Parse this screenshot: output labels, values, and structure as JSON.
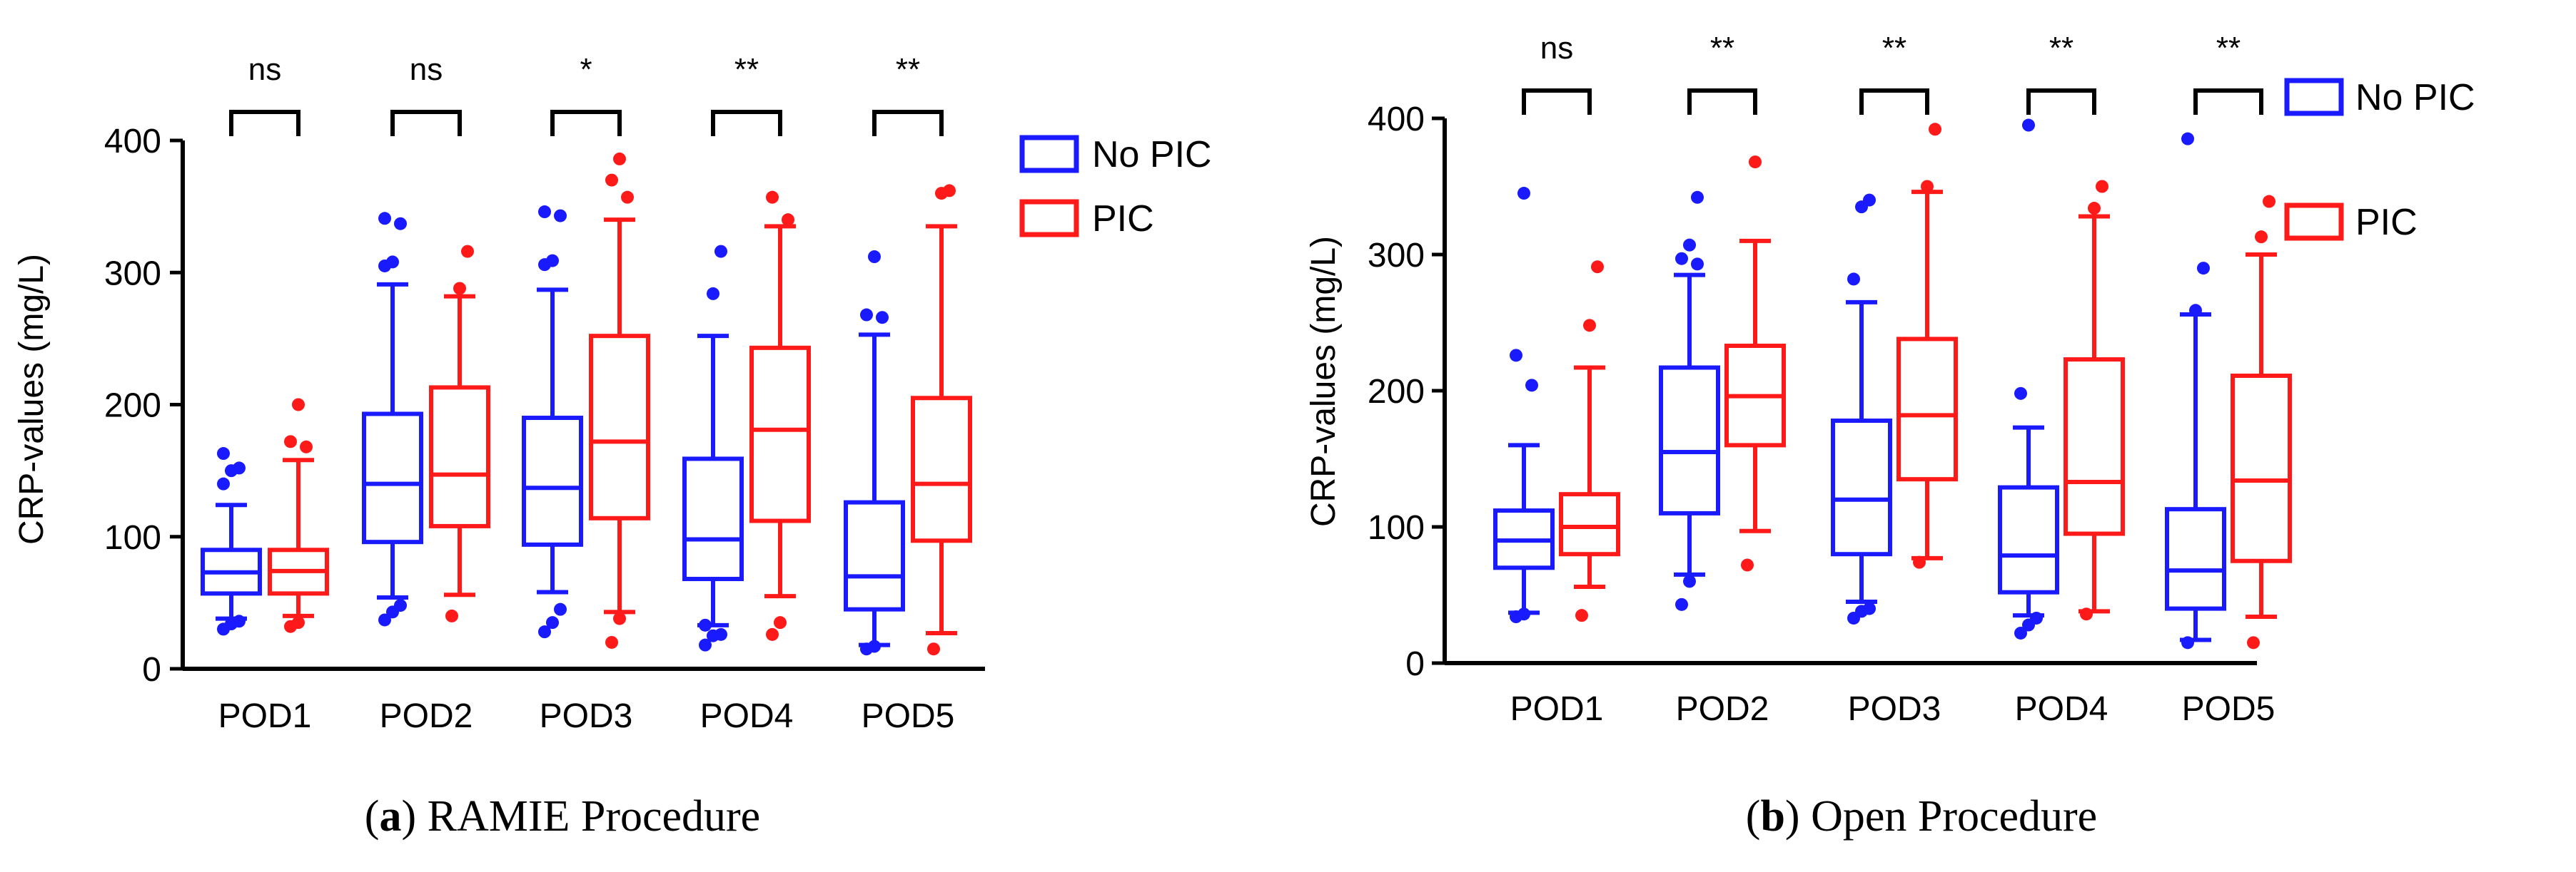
{
  "chart_data": [
    {
      "type": "box",
      "panel_letter": "a",
      "caption": "RAMIE Procedure",
      "ylabel": "CRP-values (mg/L)",
      "ylim": [
        0,
        400
      ],
      "yticks": [
        0,
        100,
        200,
        300,
        400
      ],
      "categories": [
        "POD1",
        "POD2",
        "POD3",
        "POD4",
        "POD5"
      ],
      "significance": [
        "ns",
        "ns",
        "*",
        "**",
        "**"
      ],
      "legend": [
        {
          "name": "No PIC",
          "color": "#1a1aff"
        },
        {
          "name": "PIC",
          "color": "#ff1a1a"
        }
      ],
      "series": [
        {
          "name": "No PIC",
          "color": "#1a1aff",
          "boxes": [
            {
              "whisker_low": 38,
              "q1": 57,
              "median": 73,
              "q3": 90,
              "whisker_high": 124,
              "outliers": [
                30,
                34,
                36,
                140,
                150,
                152,
                163
              ]
            },
            {
              "whisker_low": 54,
              "q1": 96,
              "median": 140,
              "q3": 193,
              "whisker_high": 291,
              "outliers": [
                37,
                43,
                48,
                305,
                308,
                337,
                341
              ]
            },
            {
              "whisker_low": 58,
              "q1": 94,
              "median": 137,
              "q3": 190,
              "whisker_high": 287,
              "outliers": [
                28,
                35,
                45,
                306,
                309,
                343,
                346
              ]
            },
            {
              "whisker_low": 33,
              "q1": 68,
              "median": 98,
              "q3": 159,
              "whisker_high": 252,
              "outliers": [
                18,
                25,
                26,
                33,
                284,
                316
              ]
            },
            {
              "whisker_low": 18,
              "q1": 45,
              "median": 70,
              "q3": 126,
              "whisker_high": 253,
              "outliers": [
                15,
                17,
                266,
                268,
                312
              ]
            }
          ]
        },
        {
          "name": "PIC",
          "color": "#ff1a1a",
          "boxes": [
            {
              "whisker_low": 40,
              "q1": 57,
              "median": 74,
              "q3": 90,
              "whisker_high": 158,
              "outliers": [
                32,
                35,
                168,
                172,
                200
              ]
            },
            {
              "whisker_low": 56,
              "q1": 108,
              "median": 147,
              "q3": 213,
              "whisker_high": 282,
              "outliers": [
                40,
                288,
                316
              ]
            },
            {
              "whisker_low": 43,
              "q1": 114,
              "median": 172,
              "q3": 252,
              "whisker_high": 340,
              "outliers": [
                20,
                38,
                357,
                370,
                386
              ]
            },
            {
              "whisker_low": 55,
              "q1": 112,
              "median": 181,
              "q3": 243,
              "whisker_high": 335,
              "outliers": [
                26,
                35,
                340,
                357
              ]
            },
            {
              "whisker_low": 27,
              "q1": 97,
              "median": 140,
              "q3": 205,
              "whisker_high": 335,
              "outliers": [
                15,
                360,
                362
              ]
            }
          ]
        }
      ]
    },
    {
      "type": "box",
      "panel_letter": "b",
      "caption": "Open Procedure",
      "ylabel": "CRP-values (mg/L)",
      "ylim": [
        0,
        400
      ],
      "yticks": [
        0,
        100,
        200,
        300,
        400
      ],
      "categories": [
        "POD1",
        "POD2",
        "POD3",
        "POD4",
        "POD5"
      ],
      "significance": [
        "ns",
        "**",
        "**",
        "**",
        "**"
      ],
      "legend": [
        {
          "name": "No PIC",
          "color": "#1a1aff"
        },
        {
          "name": "PIC",
          "color": "#ff1a1a"
        }
      ],
      "series": [
        {
          "name": "No PIC",
          "color": "#1a1aff",
          "boxes": [
            {
              "whisker_low": 37,
              "q1": 70,
              "median": 90,
              "q3": 112,
              "whisker_high": 160,
              "outliers": [
                34,
                36,
                204,
                226,
                345
              ]
            },
            {
              "whisker_low": 65,
              "q1": 110,
              "median": 155,
              "q3": 217,
              "whisker_high": 285,
              "outliers": [
                43,
                60,
                293,
                297,
                307,
                342
              ]
            },
            {
              "whisker_low": 45,
              "q1": 80,
              "median": 120,
              "q3": 178,
              "whisker_high": 265,
              "outliers": [
                33,
                38,
                40,
                282,
                335,
                340
              ]
            },
            {
              "whisker_low": 35,
              "q1": 52,
              "median": 79,
              "q3": 129,
              "whisker_high": 173,
              "outliers": [
                22,
                28,
                33,
                198,
                395
              ]
            },
            {
              "whisker_low": 17,
              "q1": 40,
              "median": 68,
              "q3": 113,
              "whisker_high": 256,
              "outliers": [
                15,
                259,
                290,
                385
              ]
            }
          ]
        },
        {
          "name": "PIC",
          "color": "#ff1a1a",
          "boxes": [
            {
              "whisker_low": 56,
              "q1": 80,
              "median": 100,
              "q3": 124,
              "whisker_high": 217,
              "outliers": [
                35,
                248,
                291
              ]
            },
            {
              "whisker_low": 97,
              "q1": 160,
              "median": 196,
              "q3": 233,
              "whisker_high": 310,
              "outliers": [
                72,
                368
              ]
            },
            {
              "whisker_low": 77,
              "q1": 135,
              "median": 182,
              "q3": 238,
              "whisker_high": 346,
              "outliers": [
                74,
                350,
                392
              ]
            },
            {
              "whisker_low": 38,
              "q1": 95,
              "median": 133,
              "q3": 223,
              "whisker_high": 328,
              "outliers": [
                36,
                334,
                350
              ]
            },
            {
              "whisker_low": 34,
              "q1": 75,
              "median": 134,
              "q3": 211,
              "whisker_high": 300,
              "outliers": [
                15,
                313,
                339
              ]
            }
          ]
        }
      ]
    }
  ]
}
